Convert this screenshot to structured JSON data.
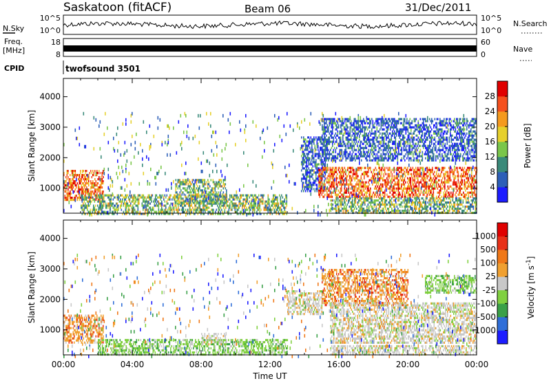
{
  "header": {
    "station": "Saskatoon (fitACF)",
    "beam": "Beam 06",
    "date": "31/Dec/2011"
  },
  "top_panels": {
    "nsky_label": "N.Sky",
    "nsky_ticks": [
      "10^5",
      "10^0"
    ],
    "nsearch_label": "N.Search",
    "nsearch_ticks": [
      "10^5",
      "10^0"
    ],
    "freq_label": "Freq.",
    "freq_unit": "[MHz]",
    "freq_ticks": [
      "18",
      "8"
    ],
    "nave_label": "Nave",
    "nave_ticks": [
      "60",
      "0"
    ],
    "cpid_label": "CPID",
    "cpid_value": "twofsound 3501"
  },
  "chart_data": [
    {
      "type": "heatmap",
      "name": "power",
      "xlabel": "",
      "ylabel": "Slant Range [km]",
      "x_ticks": [
        "00:00",
        "04:00",
        "08:00",
        "12:00",
        "16:00",
        "20:00",
        "00:00"
      ],
      "y_ticks": [
        "1000",
        "2000",
        "3000",
        "4000"
      ],
      "xlim_hours": [
        0,
        24
      ],
      "ylim_km": [
        180,
        4600
      ],
      "colorbar": {
        "label": "Power [dB]",
        "ticks": [
          "4",
          "8",
          "12",
          "16",
          "20",
          "24",
          "28"
        ],
        "range": [
          0,
          30
        ],
        "colors": [
          "#1c1cff",
          "#2d5fb8",
          "#3a8a7a",
          "#7ac64a",
          "#e6d02c",
          "#f59a1e",
          "#f5501e",
          "#e00000"
        ]
      },
      "regions": [
        {
          "t0": 0.0,
          "t1": 2.3,
          "r0": 600,
          "r1": 1600,
          "level": "high"
        },
        {
          "t0": 1.0,
          "t1": 13.0,
          "r0": 180,
          "r1": 800,
          "level": "mid"
        },
        {
          "t0": 6.5,
          "t1": 9.5,
          "r0": 500,
          "r1": 1300,
          "level": "mid"
        },
        {
          "t0": 13.8,
          "t1": 15.2,
          "r0": 900,
          "r1": 2700,
          "level": "low"
        },
        {
          "t0": 14.8,
          "t1": 24.0,
          "r0": 700,
          "r1": 1700,
          "level": "high"
        },
        {
          "t0": 15.0,
          "t1": 24.0,
          "r0": 1900,
          "r1": 3300,
          "level": "low"
        },
        {
          "t0": 15.5,
          "t1": 24.0,
          "r0": 180,
          "r1": 700,
          "level": "mid"
        },
        {
          "t0": 0.0,
          "t1": 24.0,
          "r0": 180,
          "r1": 3500,
          "level": "sparse"
        }
      ]
    },
    {
      "type": "heatmap",
      "name": "velocity",
      "xlabel": "Time UT",
      "ylabel": "Slant Range [km]",
      "x_ticks": [
        "00:00",
        "04:00",
        "08:00",
        "12:00",
        "16:00",
        "20:00",
        "00:00"
      ],
      "y_ticks": [
        "1000",
        "2000",
        "3000",
        "4000"
      ],
      "xlim_hours": [
        0,
        24
      ],
      "ylim_km": [
        180,
        4600
      ],
      "colorbar": {
        "label": "Velocity [m s^-1]",
        "ticks": [
          "1000",
          "500",
          "100",
          "25",
          "-25",
          "-100",
          "-500",
          "-1000"
        ],
        "colors": [
          "#1c1cff",
          "#2f6ed8",
          "#3aa048",
          "#80d040",
          "#c8c8c8",
          "#f0a030",
          "#f07818",
          "#e83018",
          "#e00000"
        ]
      },
      "regions": [
        {
          "t0": 0.0,
          "t1": 2.3,
          "r0": 600,
          "r1": 1500,
          "level": "orange"
        },
        {
          "t0": 2.0,
          "t1": 13.0,
          "r0": 180,
          "r1": 700,
          "level": "green"
        },
        {
          "t0": 8.0,
          "t1": 9.5,
          "r0": 500,
          "r1": 900,
          "level": "gray"
        },
        {
          "t0": 13.0,
          "t1": 15.0,
          "r0": 1500,
          "r1": 2300,
          "level": "gray"
        },
        {
          "t0": 15.0,
          "t1": 20.0,
          "r0": 1800,
          "r1": 3000,
          "level": "orange"
        },
        {
          "t0": 15.5,
          "t1": 24.0,
          "r0": 600,
          "r1": 1900,
          "level": "gray"
        },
        {
          "t0": 21.0,
          "t1": 24.0,
          "r0": 2200,
          "r1": 2800,
          "level": "green"
        },
        {
          "t0": 15.5,
          "t1": 24.0,
          "r0": 180,
          "r1": 500,
          "level": "gray"
        },
        {
          "t0": 0.0,
          "t1": 24.0,
          "r0": 180,
          "r1": 3500,
          "level": "sparse"
        }
      ]
    }
  ]
}
